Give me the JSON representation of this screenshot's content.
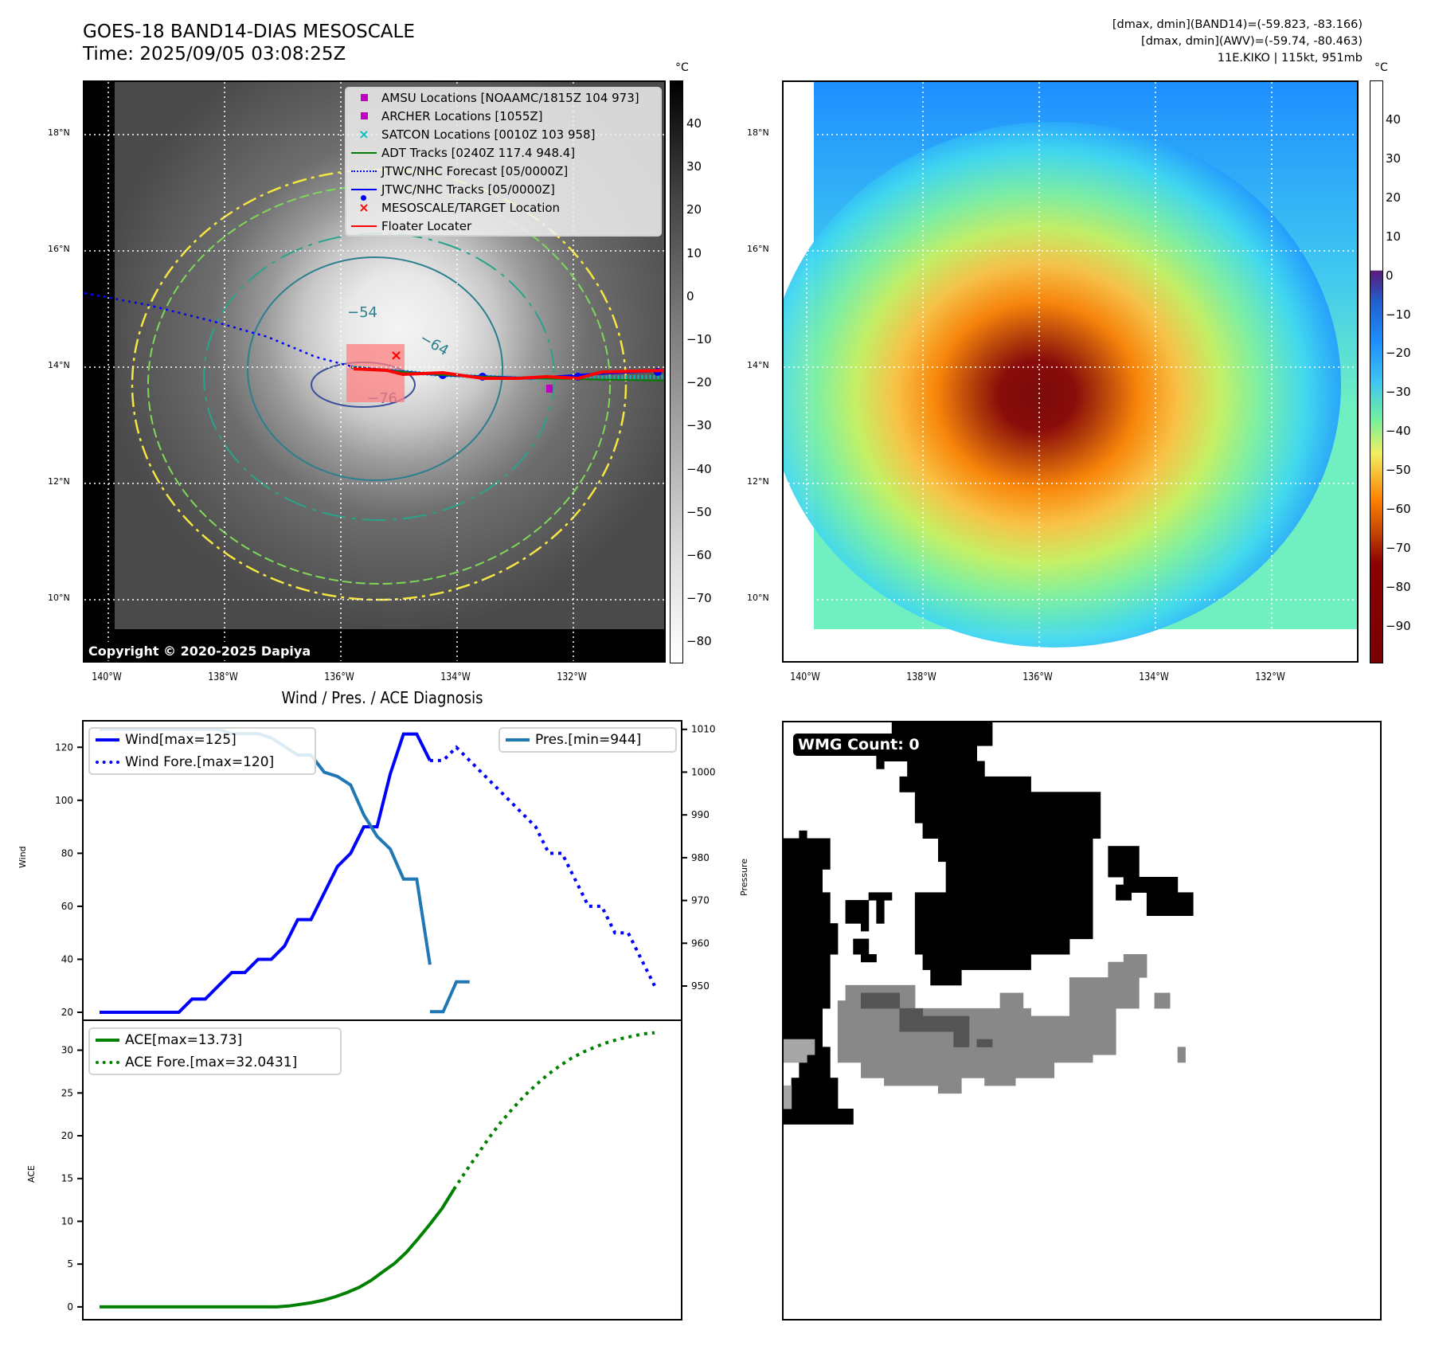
{
  "header": {
    "title_line1": "GOES-18 BAND14-DIAS MESOSCALE",
    "title_line2": "Time: 2025/09/05 03:08:25Z",
    "info_line1": "[dmax, dmin](BAND14)=(-59.823, -83.166)",
    "info_line2": "[dmax, dmin](AWV)=(-59.74, -80.463)",
    "info_line3": "11E.KIKO | 115kt, 951mb"
  },
  "map_left": {
    "lat_ticks": [
      "18°N",
      "16°N",
      "14°N",
      "12°N",
      "10°N"
    ],
    "lon_ticks": [
      "140°W",
      "138°W",
      "136°W",
      "134°W",
      "132°W"
    ],
    "contour_labels": [
      "−54",
      "−64",
      "−76"
    ],
    "copyright": "Copyright © 2020-2025 Dapiya",
    "legend": [
      {
        "label": "AMSU Locations [NOAAMC/1815Z 104 973]",
        "symbol": "square",
        "color": "#bf00bf"
      },
      {
        "label": "ARCHER Locations [1055Z]",
        "symbol": "square",
        "color": "#bf00bf"
      },
      {
        "label": "SATCON Locations [0010Z 103 958]",
        "symbol": "x",
        "color": "#00bfbf"
      },
      {
        "label": "ADT Tracks [0240Z 117.4 948.4]",
        "symbol": "line",
        "color": "#008000"
      },
      {
        "label": "JTWC/NHC Forecast [05/0000Z]",
        "symbol": "dotted",
        "color": "#0000ff"
      },
      {
        "label": "JTWC/NHC Tracks [05/0000Z]",
        "symbol": "line-dot",
        "color": "#0000ff"
      },
      {
        "label": "MESOSCALE/TARGET Location",
        "symbol": "x",
        "color": "#ff0000"
      },
      {
        "label": "Floater Locater",
        "symbol": "line",
        "color": "#ff0000"
      }
    ],
    "colorbar": {
      "unit": "°C",
      "ticks": [
        "40",
        "30",
        "20",
        "10",
        "0",
        "−10",
        "−20",
        "−30",
        "−40",
        "−50",
        "−60",
        "−70",
        "−80"
      ]
    }
  },
  "map_right": {
    "lat_ticks": [
      "18°N",
      "16°N",
      "14°N",
      "12°N",
      "10°N"
    ],
    "lon_ticks": [
      "140°W",
      "138°W",
      "136°W",
      "134°W",
      "132°W"
    ],
    "colorbar": {
      "unit": "°C",
      "ticks": [
        "40",
        "30",
        "20",
        "10",
        "0",
        "−10",
        "−20",
        "−30",
        "−40",
        "−50",
        "−60",
        "−70",
        "−80",
        "−90"
      ]
    }
  },
  "wmg": {
    "badge": "WMG Count: 0"
  },
  "chart_data": [
    {
      "type": "line",
      "title": "Wind / Pres. / ACE Diagnosis",
      "ylabel": "Wind",
      "y2label": "Pressure",
      "ylim": [
        17,
        130
      ],
      "y2lim": [
        942,
        1012
      ],
      "yticks": [
        "120",
        "100",
        "80",
        "60",
        "40",
        "20"
      ],
      "y2ticks": [
        "1010",
        "1000",
        "990",
        "980",
        "970",
        "960",
        "950"
      ],
      "x": [
        0,
        1,
        2,
        3,
        4,
        5,
        6,
        7,
        8,
        9,
        10,
        11,
        12,
        13,
        14,
        15,
        16,
        17,
        18,
        19,
        20,
        21,
        22,
        23,
        24,
        25,
        26,
        27,
        28,
        29,
        30,
        31,
        32,
        33,
        34,
        35,
        36,
        37,
        38,
        39,
        40,
        41,
        42,
        43,
        44,
        45,
        46,
        47,
        48,
        49,
        50,
        51,
        52,
        53,
        54,
        55,
        56,
        57
      ],
      "series": [
        {
          "name": "Wind[max=125]",
          "axis": "left",
          "style": "solid",
          "color": "#0000ff",
          "x": [
            0,
            2,
            4,
            6,
            8,
            10,
            12,
            14,
            16,
            18,
            20,
            22,
            24,
            26,
            28,
            30,
            32,
            34,
            36,
            38,
            40,
            42,
            44,
            46,
            48,
            50
          ],
          "values": [
            20,
            20,
            20,
            20,
            20,
            20,
            20,
            25,
            25,
            30,
            35,
            35,
            40,
            40,
            45,
            55,
            55,
            65,
            75,
            80,
            90,
            90,
            110,
            125,
            125,
            115
          ]
        },
        {
          "name": "Wind Fore.[max=120]",
          "axis": "left",
          "style": "dotted",
          "color": "#0000ff",
          "x": [
            50,
            52,
            54,
            56,
            58,
            60,
            62,
            64,
            66,
            68,
            70,
            72,
            74,
            76,
            78,
            80,
            82,
            84
          ],
          "values": [
            115,
            115,
            120,
            115,
            110,
            105,
            100,
            95,
            90,
            80,
            80,
            70,
            60,
            60,
            50,
            50,
            40,
            30
          ]
        },
        {
          "name": "Pres.[min=944]",
          "axis": "right",
          "style": "solid",
          "color": "#1f77b4",
          "x": [
            0,
            2,
            4,
            6,
            8,
            10,
            12,
            14,
            16,
            18,
            20,
            22,
            24,
            26,
            28,
            30,
            32,
            34,
            36,
            38,
            40,
            42,
            44,
            46,
            48,
            50
          ],
          "values": [
            1010,
            1010,
            1010,
            1010,
            1010,
            1010,
            1010,
            1010,
            1010,
            1010,
            1009,
            1009,
            1009,
            1008,
            1006,
            1004,
            1004,
            1000,
            999,
            997,
            990,
            985,
            982,
            975,
            975,
            955
          ]
        },
        {
          "name": "Pres.(tail)",
          "axis": "right",
          "style": "solid",
          "color": "#1f77b4",
          "hidden_legend": true,
          "x": [
            50,
            52,
            54,
            56
          ],
          "values": [
            944,
            944,
            951,
            951
          ]
        }
      ]
    },
    {
      "type": "line",
      "ylabel": "ACE",
      "ylim": [
        -1.5,
        33.5
      ],
      "yticks": [
        "30",
        "25",
        "20",
        "15",
        "10",
        "5",
        "0"
      ],
      "series": [
        {
          "name": "ACE[max=13.73]",
          "style": "solid",
          "color": "#008000",
          "x": [
            0,
            5,
            10,
            15,
            20,
            25,
            30,
            35,
            40,
            45,
            50,
            55,
            60,
            65,
            70,
            75,
            80,
            85,
            90,
            95,
            100,
            105,
            110,
            115,
            120,
            125,
            130,
            135,
            140,
            145,
            150
          ],
          "values": [
            0,
            0,
            0,
            0,
            0,
            0,
            0,
            0,
            0,
            0,
            0,
            0,
            0,
            0,
            0,
            0,
            0.1,
            0.3,
            0.5,
            0.8,
            1.2,
            1.7,
            2.3,
            3.1,
            4.1,
            5.1,
            6.4,
            8,
            9.7,
            11.5,
            13.73
          ]
        },
        {
          "name": "ACE Fore.[max=32.0431]",
          "style": "dotted",
          "color": "#008000",
          "x": [
            150,
            155,
            160,
            165,
            170,
            175,
            180,
            185,
            190,
            195,
            200,
            205,
            210,
            215,
            220,
            225,
            230,
            235
          ],
          "values": [
            13.73,
            15.8,
            17.8,
            19.8,
            21.6,
            23.2,
            24.7,
            26.0,
            27.2,
            28.2,
            29.1,
            29.8,
            30.4,
            30.9,
            31.3,
            31.6,
            31.9,
            32.0431
          ]
        }
      ]
    }
  ]
}
